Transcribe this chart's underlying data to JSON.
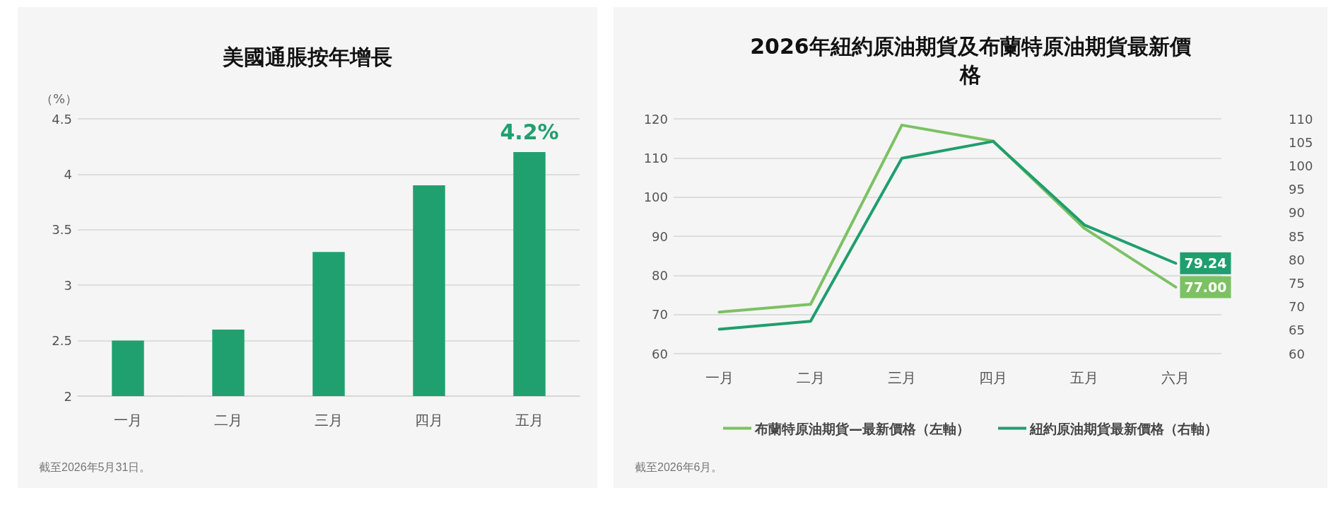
{
  "chart_data": [
    {
      "type": "bar",
      "title": "美國通脹按年增長",
      "ylabel": "（%）",
      "categories": [
        "一月",
        "二月",
        "三月",
        "四月",
        "五月"
      ],
      "values": [
        2.5,
        2.6,
        3.3,
        3.9,
        4.2
      ],
      "color": "#21a06f",
      "value_labels": [
        null,
        null,
        null,
        null,
        "4.2%"
      ],
      "ylim": [
        2,
        4.5
      ],
      "yticks": [
        2,
        2.5,
        3,
        3.5,
        4,
        4.5
      ],
      "grid": "y",
      "annotations": [
        "截至2026年5月31日。"
      ]
    },
    {
      "type": "line",
      "title": "2026年紐約原油期貨及布蘭特原油期貨最新價格",
      "categories": [
        "一月",
        "二月",
        "三月",
        "四月",
        "五月",
        "六月"
      ],
      "series": [
        {
          "name": "布蘭特原油期貨—最新價格（左軸）",
          "color": "#7cc163",
          "values": [
            70.6,
            72.6,
            118.4,
            114.3,
            92.0,
            77.0
          ],
          "value_labels": [
            null,
            null,
            null,
            null,
            null,
            "77.00"
          ]
        },
        {
          "name": "紐約原油期貨最新價格（右軸）",
          "color": "#1f9e6e",
          "axis": "y2",
          "values": [
            65.2,
            66.9,
            101.6,
            105.2,
            87.4,
            79.24
          ],
          "value_labels": [
            null,
            null,
            null,
            null,
            null,
            "79.24"
          ]
        }
      ],
      "ylim": [
        60,
        120
      ],
      "yticks": [
        60,
        70,
        80,
        90,
        100,
        110,
        120
      ],
      "y2lim": [
        60,
        110
      ],
      "y2ticks": [
        60,
        65,
        70,
        75,
        80,
        85,
        90,
        95,
        100,
        105,
        110
      ],
      "grid": "y",
      "legend": "bottom",
      "marker": "none",
      "line_style": "solid",
      "annotations": [
        "截至2026年6月。"
      ]
    }
  ]
}
